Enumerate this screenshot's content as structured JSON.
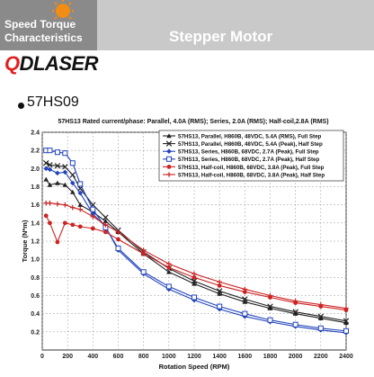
{
  "header": {
    "left_line1": "Speed Torque",
    "left_line2": "Characteristics",
    "title": "Stepper Motor"
  },
  "brand": {
    "accent": "Q",
    "rest": "DLASER"
  },
  "section": {
    "title": "57HS09"
  },
  "colors": {
    "header_bg": "#c9c9c9",
    "header_dark": "#8a8a8a",
    "sun": "#f28c12",
    "brand_accent": "#e02020"
  },
  "chart_data": {
    "type": "line",
    "title": "57HS13 Rated current/phase: Parallel, 4.0A (RMS); Series, 2.0A (RMS); Half-coil,2.8A (RMS)",
    "xlabel": "Rotation Speed (RPM)",
    "ylabel": "Torque (N*m)",
    "xlim": [
      0,
      2400
    ],
    "ylim": [
      0,
      2.4
    ],
    "xticks": [
      0,
      200,
      400,
      600,
      800,
      1000,
      1200,
      1400,
      1600,
      1800,
      2000,
      2200,
      2400
    ],
    "yticks": [
      0.2,
      0.4,
      0.6,
      0.8,
      1.0,
      1.2,
      1.4,
      1.6,
      1.8,
      2.0,
      2.2,
      2.4
    ],
    "grid": true,
    "legend_position": "top-right",
    "series": [
      {
        "name": "57HS13, Parallel, H860B, 48VDC, 5.4A (RMS), Full Step",
        "color": "#222222",
        "marker": "triangle",
        "x": [
          30,
          60,
          120,
          180,
          240,
          300,
          400,
          500,
          600,
          800,
          1000,
          1200,
          1400,
          1600,
          1800,
          2000,
          2200,
          2400
        ],
        "y": [
          1.88,
          1.82,
          1.84,
          1.82,
          1.74,
          1.6,
          1.52,
          1.42,
          1.3,
          1.06,
          0.86,
          0.73,
          0.62,
          0.53,
          0.46,
          0.4,
          0.35,
          0.3
        ]
      },
      {
        "name": "57HS13, Parallel, H860B, 48VDC, 5.4A (Peak), Half Step",
        "color": "#222222",
        "marker": "x",
        "x": [
          30,
          60,
          120,
          180,
          240,
          300,
          400,
          500,
          600,
          800,
          1000,
          1200,
          1400,
          1600,
          1800,
          2000,
          2200,
          2400
        ],
        "y": [
          2.06,
          2.04,
          2.03,
          2.02,
          1.93,
          1.78,
          1.6,
          1.46,
          1.32,
          1.08,
          0.9,
          0.76,
          0.65,
          0.56,
          0.48,
          0.42,
          0.37,
          0.32
        ]
      },
      {
        "name": "57HS13, Series, H860B, 68VDC, 2.7A (Peak), Full Step",
        "color": "#2244bb",
        "marker": "diamond",
        "x": [
          30,
          60,
          120,
          180,
          240,
          300,
          400,
          500,
          600,
          800,
          1000,
          1200,
          1400,
          1600,
          1800,
          2000,
          2200,
          2400
        ],
        "y": [
          2.0,
          1.99,
          1.95,
          1.96,
          1.84,
          1.73,
          1.5,
          1.36,
          1.1,
          0.84,
          0.67,
          0.55,
          0.45,
          0.37,
          0.31,
          0.26,
          0.22,
          0.19
        ]
      },
      {
        "name": "57HS13, Series, H860B, 68VDC, 2.7A (Peak), Half Step",
        "color": "#2244bb",
        "marker": "square",
        "x": [
          30,
          60,
          120,
          180,
          240,
          300,
          400,
          500,
          600,
          800,
          1000,
          1200,
          1400,
          1600,
          1800,
          2000,
          2200,
          2400
        ],
        "y": [
          2.2,
          2.2,
          2.18,
          2.17,
          2.06,
          1.83,
          1.55,
          1.35,
          1.12,
          0.86,
          0.7,
          0.58,
          0.48,
          0.4,
          0.33,
          0.28,
          0.24,
          0.21
        ]
      },
      {
        "name": "57HS13, Half-coil, H860B, 68VDC, 3.8A (Peak), Full Step",
        "color": "#cc2222",
        "marker": "circle",
        "x": [
          30,
          60,
          120,
          180,
          240,
          300,
          400,
          500,
          600,
          800,
          1000,
          1200,
          1400,
          1600,
          1800,
          2000,
          2200,
          2400
        ],
        "y": [
          1.48,
          1.4,
          1.19,
          1.4,
          1.38,
          1.36,
          1.34,
          1.3,
          1.22,
          1.06,
          0.91,
          0.8,
          0.71,
          0.64,
          0.58,
          0.52,
          0.48,
          0.44
        ]
      },
      {
        "name": "57HS13, Half-coil, H860B, 68VDC, 3.8A (Peak), Half Step",
        "color": "#cc2222",
        "marker": "plus",
        "x": [
          30,
          60,
          120,
          180,
          240,
          300,
          400,
          500,
          600,
          800,
          1000,
          1200,
          1400,
          1600,
          1800,
          2000,
          2200,
          2400
        ],
        "y": [
          1.62,
          1.62,
          1.61,
          1.6,
          1.57,
          1.55,
          1.47,
          1.38,
          1.3,
          1.1,
          0.95,
          0.84,
          0.75,
          0.67,
          0.6,
          0.54,
          0.5,
          0.46
        ]
      }
    ]
  }
}
